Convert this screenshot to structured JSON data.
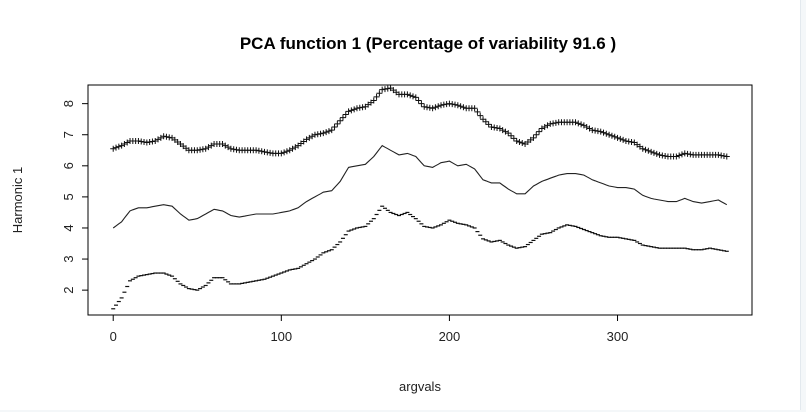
{
  "chart_data": {
    "type": "line",
    "title": "PCA function 1 (Percentage of variability 91.6 )",
    "xlabel": "argvals",
    "ylabel": "Harmonic 1",
    "xlim": [
      -15,
      380
    ],
    "ylim": [
      1.2,
      8.6
    ],
    "x_ticks": [
      "0",
      "100",
      "200",
      "300"
    ],
    "y_ticks": [
      "2",
      "3",
      "4",
      "5",
      "6",
      "7",
      "8"
    ],
    "grid": false,
    "series": [
      {
        "marker": "+",
        "x": [
          0,
          5,
          10,
          15,
          20,
          25,
          30,
          35,
          40,
          45,
          50,
          55,
          60,
          65,
          70,
          75,
          80,
          85,
          90,
          95,
          100,
          105,
          110,
          115,
          120,
          125,
          130,
          135,
          140,
          145,
          150,
          155,
          160,
          165,
          170,
          175,
          180,
          185,
          190,
          195,
          200,
          205,
          210,
          215,
          220,
          225,
          230,
          235,
          240,
          245,
          250,
          255,
          260,
          265,
          270,
          275,
          280,
          285,
          290,
          295,
          300,
          305,
          310,
          315,
          320,
          325,
          330,
          335,
          340,
          345,
          350,
          355,
          360,
          365
        ],
        "values": [
          6.55,
          6.65,
          6.8,
          6.8,
          6.75,
          6.8,
          6.95,
          6.9,
          6.7,
          6.5,
          6.5,
          6.55,
          6.7,
          6.7,
          6.55,
          6.5,
          6.5,
          6.5,
          6.45,
          6.4,
          6.4,
          6.5,
          6.65,
          6.85,
          7.0,
          7.05,
          7.15,
          7.45,
          7.75,
          7.85,
          7.9,
          8.1,
          8.45,
          8.5,
          8.3,
          8.3,
          8.2,
          7.9,
          7.85,
          7.95,
          8.0,
          7.95,
          7.85,
          7.85,
          7.5,
          7.25,
          7.2,
          7.05,
          6.8,
          6.7,
          6.9,
          7.2,
          7.35,
          7.4,
          7.4,
          7.4,
          7.3,
          7.15,
          7.1,
          7.0,
          6.9,
          6.8,
          6.75,
          6.55,
          6.45,
          6.35,
          6.3,
          6.3,
          6.4,
          6.35,
          6.35,
          6.35,
          6.35,
          6.3
        ]
      },
      {
        "marker": "none",
        "x": [
          0,
          5,
          10,
          15,
          20,
          25,
          30,
          35,
          40,
          45,
          50,
          55,
          60,
          65,
          70,
          75,
          80,
          85,
          90,
          95,
          100,
          105,
          110,
          115,
          120,
          125,
          130,
          135,
          140,
          145,
          150,
          155,
          160,
          165,
          170,
          175,
          180,
          185,
          190,
          195,
          200,
          205,
          210,
          215,
          220,
          225,
          230,
          235,
          240,
          245,
          250,
          255,
          260,
          265,
          270,
          275,
          280,
          285,
          290,
          295,
          300,
          305,
          310,
          315,
          320,
          325,
          330,
          335,
          340,
          345,
          350,
          355,
          360,
          365
        ],
        "values": [
          4.0,
          4.2,
          4.55,
          4.65,
          4.65,
          4.7,
          4.75,
          4.7,
          4.45,
          4.25,
          4.3,
          4.45,
          4.6,
          4.55,
          4.4,
          4.35,
          4.4,
          4.45,
          4.45,
          4.45,
          4.5,
          4.55,
          4.65,
          4.85,
          5.0,
          5.15,
          5.2,
          5.5,
          5.95,
          6.0,
          6.05,
          6.3,
          6.65,
          6.5,
          6.35,
          6.4,
          6.3,
          6.0,
          5.95,
          6.1,
          6.15,
          6.0,
          6.05,
          5.9,
          5.55,
          5.45,
          5.45,
          5.25,
          5.1,
          5.1,
          5.35,
          5.5,
          5.6,
          5.7,
          5.75,
          5.75,
          5.7,
          5.55,
          5.45,
          5.35,
          5.3,
          5.3,
          5.25,
          5.05,
          4.95,
          4.9,
          4.85,
          4.85,
          4.95,
          4.85,
          4.8,
          4.85,
          4.9,
          4.75
        ]
      },
      {
        "marker": "-",
        "x": [
          0,
          5,
          10,
          15,
          20,
          25,
          30,
          35,
          40,
          45,
          50,
          55,
          60,
          65,
          70,
          75,
          80,
          85,
          90,
          95,
          100,
          105,
          110,
          115,
          120,
          125,
          130,
          135,
          140,
          145,
          150,
          155,
          160,
          165,
          170,
          175,
          180,
          185,
          190,
          195,
          200,
          205,
          210,
          215,
          220,
          225,
          230,
          235,
          240,
          245,
          250,
          255,
          260,
          265,
          270,
          275,
          280,
          285,
          290,
          295,
          300,
          305,
          310,
          315,
          320,
          325,
          330,
          335,
          340,
          345,
          350,
          355,
          360,
          365
        ],
        "values": [
          1.4,
          1.75,
          2.3,
          2.45,
          2.5,
          2.55,
          2.55,
          2.45,
          2.2,
          2.05,
          2.0,
          2.15,
          2.4,
          2.4,
          2.2,
          2.2,
          2.25,
          2.3,
          2.35,
          2.45,
          2.55,
          2.65,
          2.7,
          2.85,
          3.0,
          3.2,
          3.3,
          3.55,
          3.9,
          4.0,
          4.05,
          4.3,
          4.7,
          4.5,
          4.4,
          4.5,
          4.3,
          4.05,
          4.0,
          4.1,
          4.25,
          4.15,
          4.1,
          4.0,
          3.65,
          3.55,
          3.6,
          3.45,
          3.35,
          3.4,
          3.6,
          3.8,
          3.85,
          4.0,
          4.1,
          4.05,
          3.95,
          3.85,
          3.75,
          3.7,
          3.7,
          3.65,
          3.6,
          3.45,
          3.4,
          3.35,
          3.35,
          3.35,
          3.35,
          3.3,
          3.3,
          3.35,
          3.3,
          3.25
        ]
      }
    ]
  }
}
